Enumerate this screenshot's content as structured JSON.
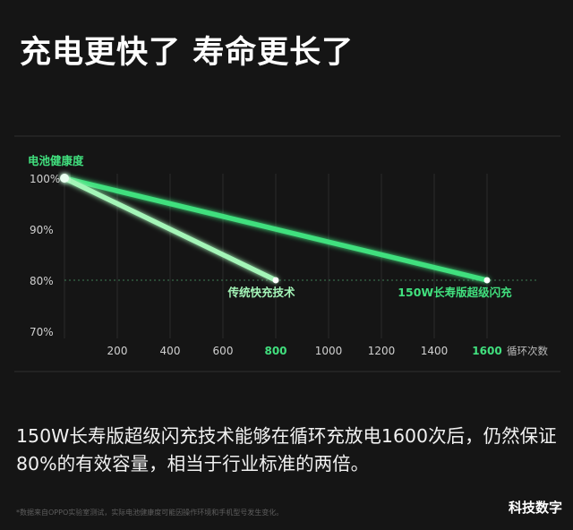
{
  "page": {
    "title": "充电更快了 寿命更长了",
    "description": "150W长寿版超级闪充技术能够在循环充放电1600次后，仍然保证80%的有效容量，相当于行业标准的两倍。",
    "footnote": "*数据来自OPPO实验室测试，实际电池健康度可能因操作环境和手机型号发生变化。",
    "watermark": "科技数字"
  },
  "colors": {
    "background": "#151515",
    "accent_green": "#41e07e",
    "light_green": "#a4f5b8",
    "grid": "#2c2c2c",
    "tick_text": "#d0d0d0",
    "axis_text": "#bbbbbb"
  },
  "chart_data": {
    "type": "line",
    "ylabel": "电池健康度",
    "xlabel": "循环次数",
    "xlim": [
      0,
      1650
    ],
    "ylim": [
      70,
      100
    ],
    "x_ticks": [
      200,
      400,
      600,
      800,
      1000,
      1200,
      1400,
      1600
    ],
    "x_ticks_highlight": [
      800,
      1600
    ],
    "y_ticks": [
      "100%",
      "90%",
      "80%",
      "70%"
    ],
    "y_tick_values": [
      100,
      90,
      80,
      70
    ],
    "reference_line": 80,
    "series": [
      {
        "name": "传统快充技术",
        "color": "#a4f5b8",
        "points": [
          {
            "x": 0,
            "y": 100
          },
          {
            "x": 800,
            "y": 80
          }
        ]
      },
      {
        "name": "150W长寿版超级闪充",
        "color": "#41e07e",
        "points": [
          {
            "x": 0,
            "y": 100
          },
          {
            "x": 1600,
            "y": 80
          }
        ]
      }
    ]
  }
}
